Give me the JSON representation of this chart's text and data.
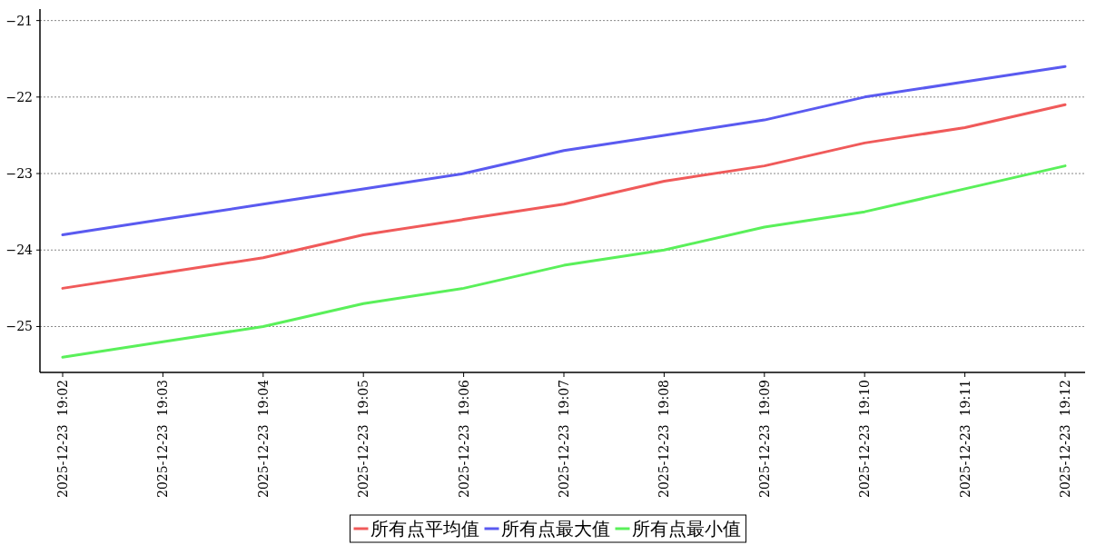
{
  "chart_data": {
    "type": "line",
    "categories": [
      "2025-12-23  19:02",
      "2025-12-23  19:03",
      "2025-12-23  19:04",
      "2025-12-23  19:05",
      "2025-12-23  19:06",
      "2025-12-23  19:07",
      "2025-12-23  19:08",
      "2025-12-23  19:09",
      "2025-12-23  19:10",
      "2025-12-23  19:11",
      "2025-12-23  19:12"
    ],
    "series": [
      {
        "name": "所有点平均值",
        "color": "#f05a5a",
        "values": [
          -24.5,
          -24.3,
          -24.1,
          -23.8,
          -23.6,
          -23.4,
          -23.1,
          -22.9,
          -22.6,
          -22.4,
          -22.1
        ]
      },
      {
        "name": "所有点最大值",
        "color": "#5a5af0",
        "values": [
          -23.8,
          -23.6,
          -23.4,
          -23.2,
          -23.0,
          -22.7,
          -22.5,
          -22.3,
          -22.0,
          -21.8,
          -21.6
        ]
      },
      {
        "name": "所有点最小值",
        "color": "#5af05a",
        "values": [
          -25.4,
          -25.2,
          -25.0,
          -24.7,
          -24.5,
          -24.2,
          -24.0,
          -23.7,
          -23.5,
          -23.2,
          -22.9
        ]
      }
    ],
    "ylim": [
      -25.6,
      -20.85
    ],
    "yticks": [
      -25,
      -24,
      -23,
      -22,
      -21
    ],
    "grid": "y",
    "legend": "bottom",
    "marker": "none",
    "line_style": "solid"
  }
}
